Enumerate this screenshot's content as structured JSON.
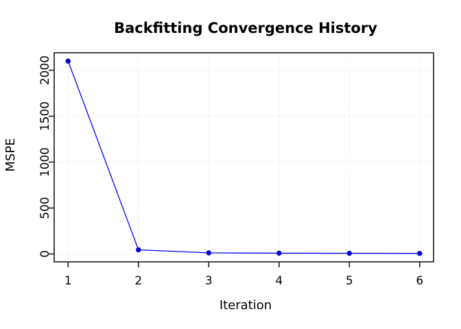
{
  "chart_data": {
    "type": "line",
    "title": "Backfitting Convergence History",
    "xlabel": "Iteration",
    "ylabel": "MSPE",
    "x": [
      1,
      2,
      3,
      4,
      5,
      6
    ],
    "y": [
      2100,
      45,
      12,
      8,
      7,
      6
    ],
    "series": [
      {
        "name": "MSPE",
        "values": [
          2100,
          45,
          12,
          8,
          7,
          6
        ]
      }
    ],
    "xticks": [
      1,
      2,
      3,
      4,
      5,
      6
    ],
    "xtick_labels": [
      "1",
      "2",
      "3",
      "4",
      "5",
      "6"
    ],
    "yticks": [
      0,
      500,
      1000,
      1500,
      2000
    ],
    "ytick_labels": [
      "0",
      "500",
      "1000",
      "1500",
      "2000"
    ],
    "xlim": [
      0.8,
      6.2
    ],
    "ylim": [
      -80,
      2180
    ],
    "grid": "dotted both axes",
    "legend": "none",
    "colors": {
      "line": "#0000ff",
      "marker": "#0000cc",
      "grid": "#d6d6d6",
      "axis": "#1a1a1a",
      "text": "#000000",
      "background": "#ffffff"
    }
  }
}
